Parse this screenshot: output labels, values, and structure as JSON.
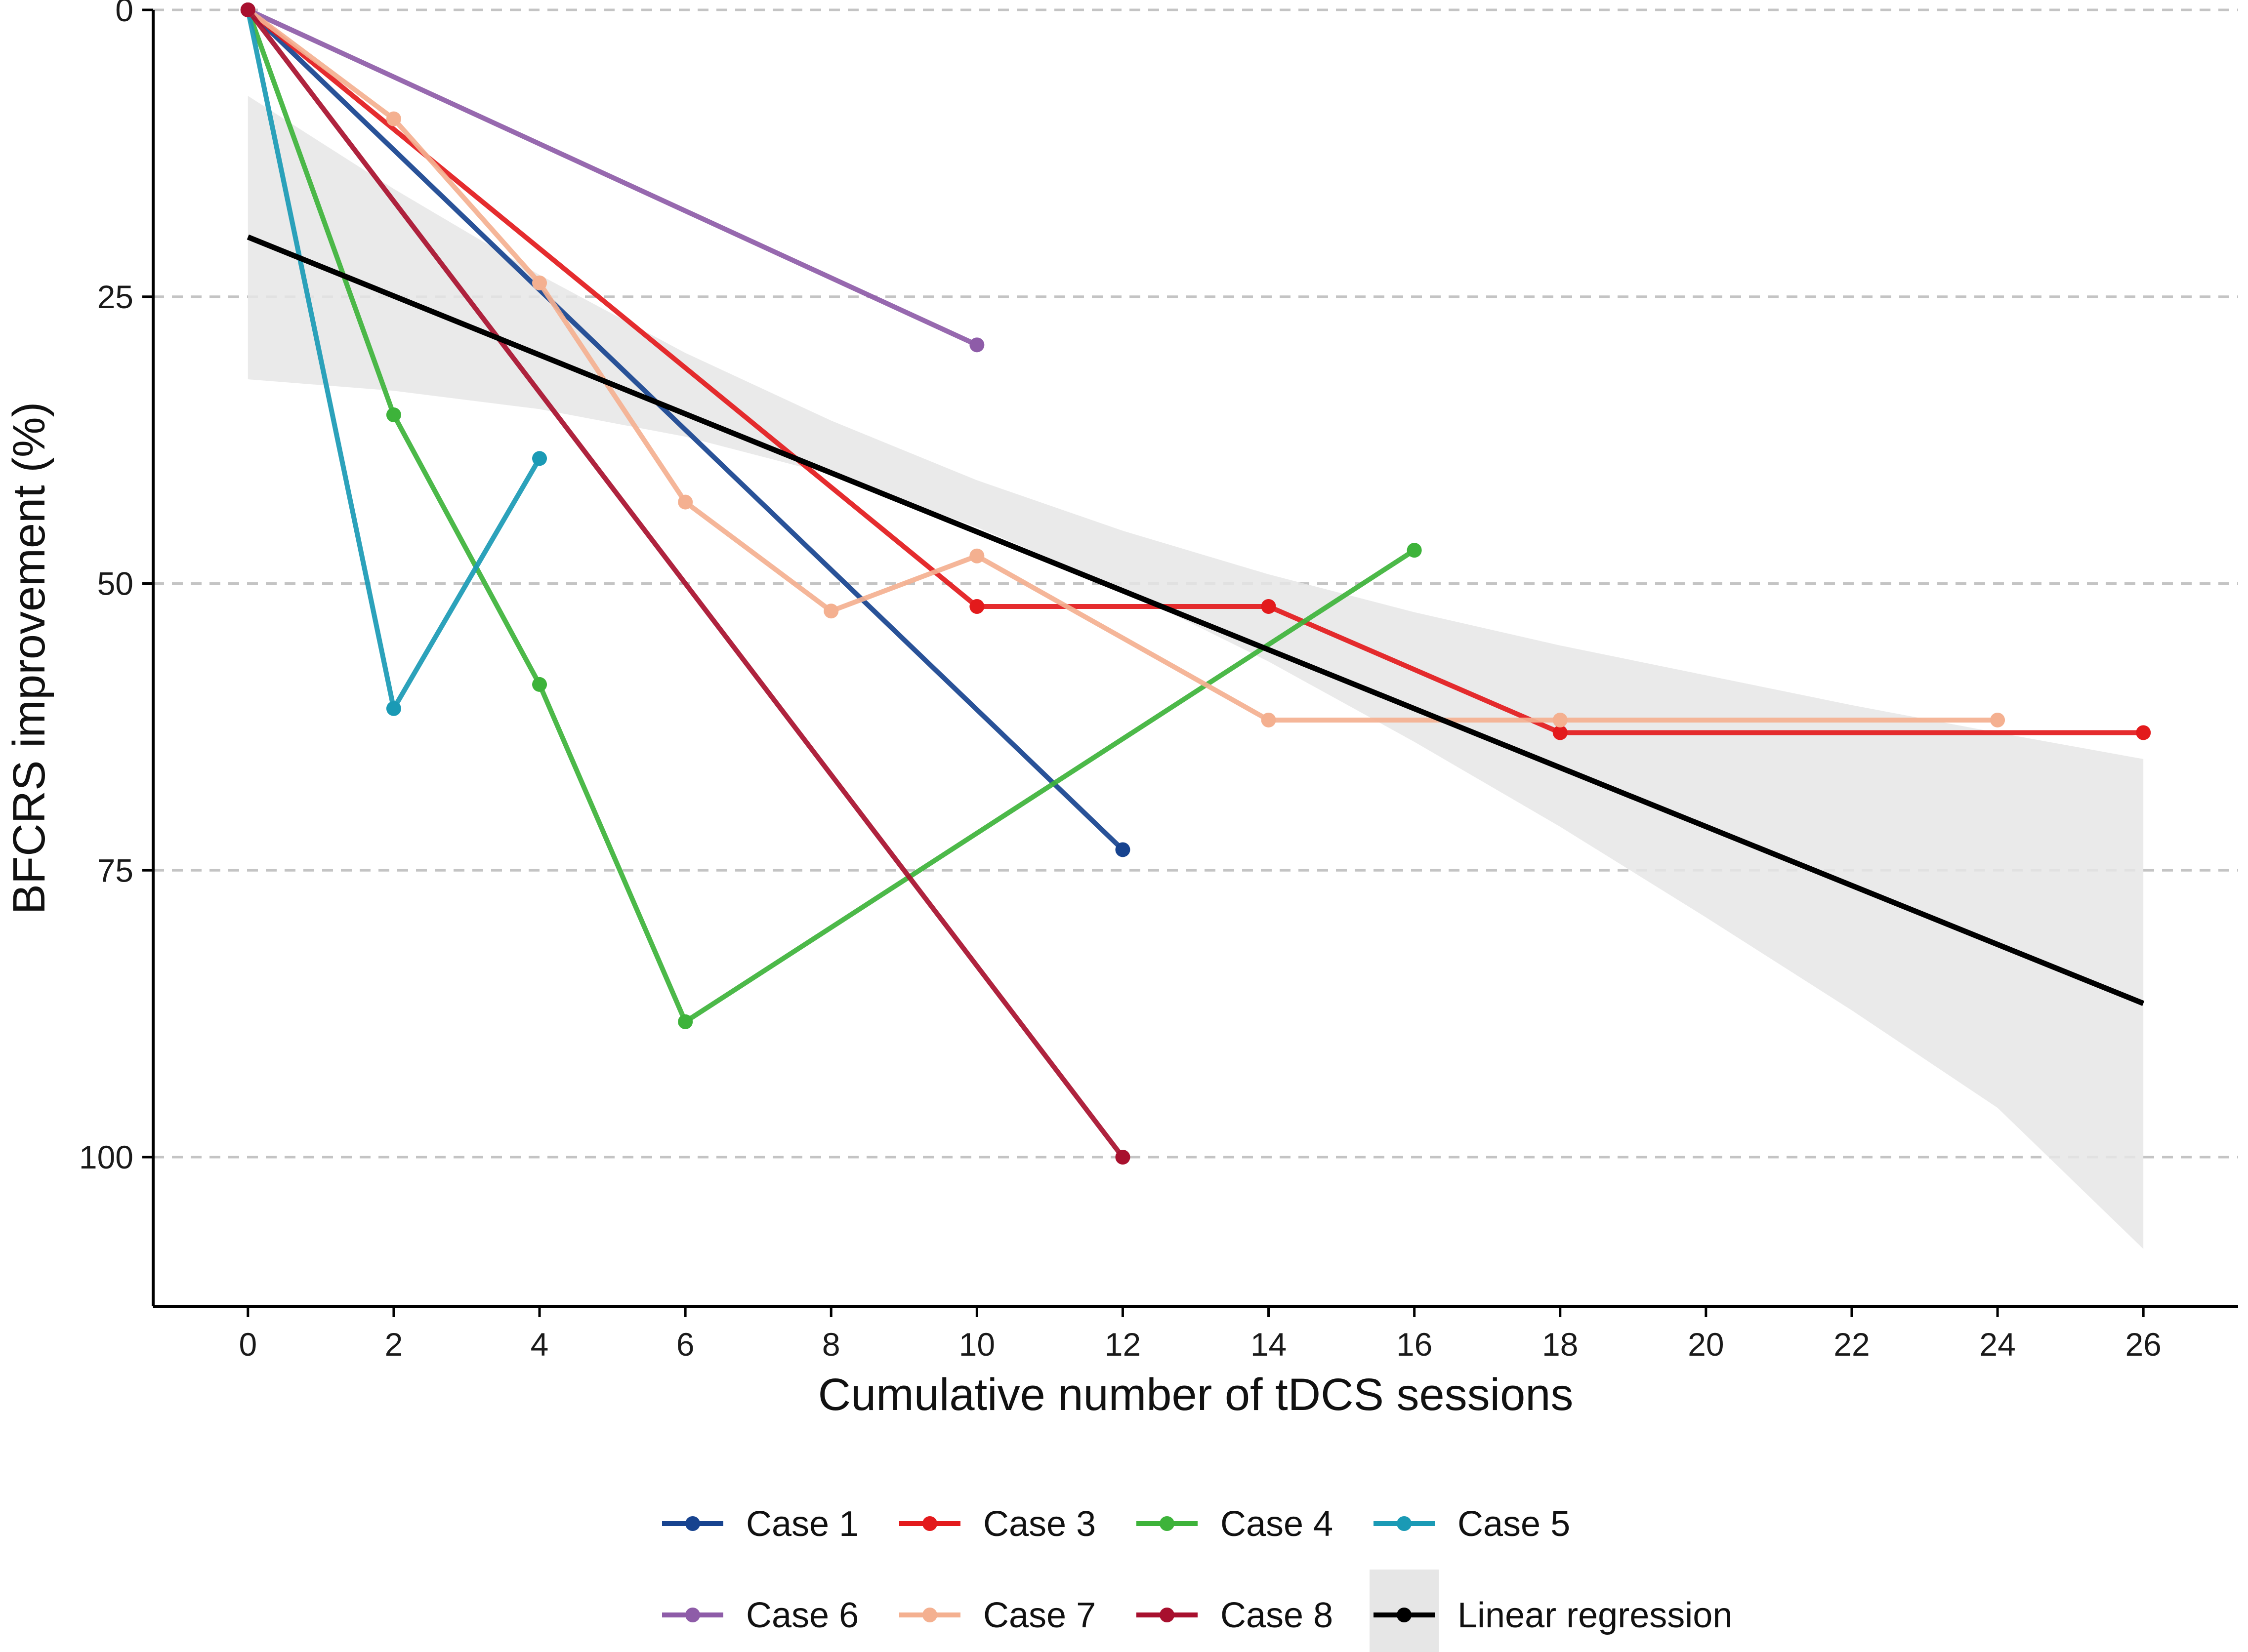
{
  "chart_data": {
    "type": "line",
    "title": "",
    "xlabel": "Cumulative number of tDCS sessions",
    "ylabel": "BFCRS improvement (%)",
    "xlim": [
      -1.3,
      27.3
    ],
    "ylim": [
      0,
      113
    ],
    "y_inverted": true,
    "x_ticks": [
      0,
      2,
      4,
      6,
      8,
      10,
      12,
      14,
      16,
      18,
      20,
      22,
      24,
      26
    ],
    "y_ticks": [
      0,
      25,
      50,
      75,
      100
    ],
    "grid": "horizontal dashed",
    "legend_position": "bottom",
    "series": [
      {
        "name": "Case 1",
        "color": "#17438f",
        "x": [
          0,
          12
        ],
        "y": [
          0,
          73.2
        ]
      },
      {
        "name": "Case 3",
        "color": "#e31a1c",
        "x": [
          0,
          10,
          14,
          18,
          26
        ],
        "y": [
          0,
          52,
          52,
          63,
          63
        ]
      },
      {
        "name": "Case 4",
        "color": "#3db33a",
        "x": [
          0,
          2,
          4,
          6,
          16
        ],
        "y": [
          0,
          35.3,
          58.8,
          88.2,
          47.1
        ]
      },
      {
        "name": "Case 5",
        "color": "#1a9ab5",
        "x": [
          0,
          2,
          4
        ],
        "y": [
          0,
          60.9,
          39.1
        ]
      },
      {
        "name": "Case 6",
        "color": "#8e5ca8",
        "x": [
          0,
          10
        ],
        "y": [
          0,
          29.2
        ]
      },
      {
        "name": "Case 7",
        "color": "#f4b090",
        "x": [
          0,
          2,
          4,
          6,
          8,
          10,
          14,
          18,
          24
        ],
        "y": [
          0,
          9.5,
          23.8,
          42.9,
          52.4,
          47.6,
          61.9,
          61.9,
          61.9
        ]
      },
      {
        "name": "Case 8",
        "color": "#a8102e",
        "x": [
          0,
          12
        ],
        "y": [
          0,
          100
        ]
      }
    ],
    "regression": {
      "name": "Linear regression",
      "color": "#000000",
      "x": [
        0,
        26
      ],
      "y": [
        19.8,
        86.6
      ],
      "ci_x": [
        0,
        2,
        4,
        6,
        8,
        10,
        12,
        14,
        16,
        18,
        20,
        22,
        24,
        26
      ],
      "ci_lower": [
        7.5,
        15.6,
        23.1,
        29.9,
        35.8,
        41.0,
        45.4,
        49.2,
        52.5,
        55.4,
        58.0,
        60.6,
        63.0,
        65.3
      ],
      "ci_upper": [
        32.2,
        33.2,
        34.8,
        37.2,
        40.5,
        45.1,
        50.5,
        56.8,
        63.8,
        71.2,
        79.1,
        87.2,
        95.7,
        108.0
      ],
      "ci_color": "#e6e6e6"
    }
  }
}
